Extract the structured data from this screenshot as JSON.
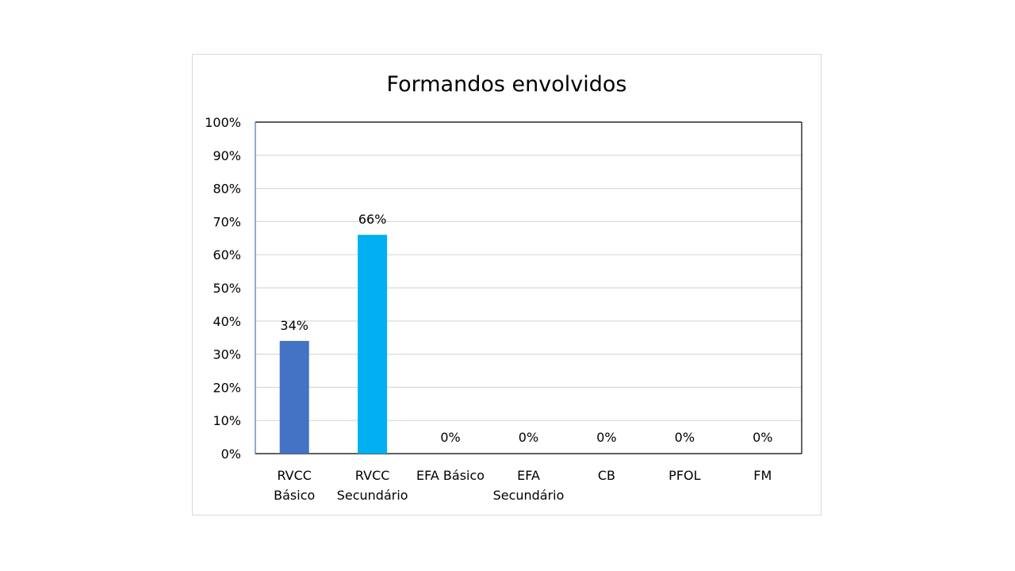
{
  "chart_data": {
    "type": "bar",
    "title": "Formandos envolvidos",
    "categories": [
      [
        "RVCC",
        "Básico"
      ],
      [
        "RVCC",
        "Secundário"
      ],
      [
        "EFA Básico"
      ],
      [
        "EFA",
        "Secundário"
      ],
      [
        "CB"
      ],
      [
        "PFOL"
      ],
      [
        "FM"
      ]
    ],
    "values": [
      34,
      66,
      0,
      0,
      0,
      0,
      0
    ],
    "value_labels": [
      "34%",
      "66%",
      "0%",
      "0%",
      "0%",
      "0%",
      "0%"
    ],
    "bar_colors": [
      "#4472c4",
      "#00b0f0",
      "#4472c4",
      "#4472c4",
      "#4472c4",
      "#4472c4",
      "#4472c4"
    ],
    "y_ticks": [
      "0%",
      "10%",
      "20%",
      "30%",
      "40%",
      "50%",
      "60%",
      "70%",
      "80%",
      "90%",
      "100%"
    ],
    "ylim": [
      0,
      100
    ],
    "xlabel": "",
    "ylabel": "",
    "grid": true,
    "legend": "none"
  }
}
